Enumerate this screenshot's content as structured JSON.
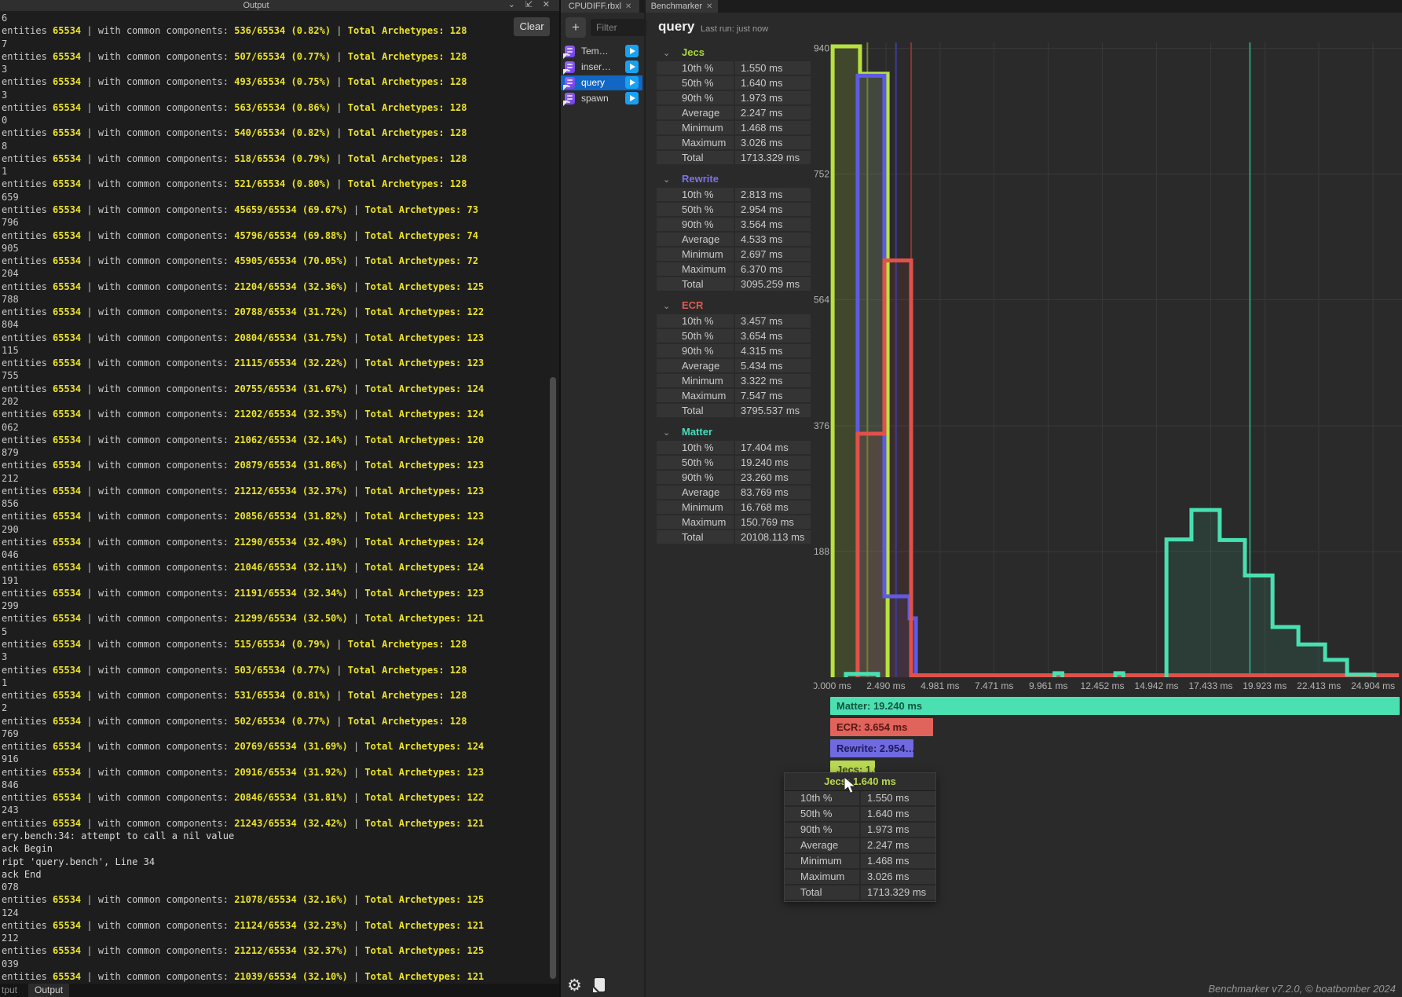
{
  "output_panel": {
    "title": "Output",
    "clear_button": "Clear",
    "bottom_tabs": [
      "tput",
      "Output"
    ],
    "log_prefix": "entities",
    "log_entity_count": "65534",
    "log_mid": "with common components:",
    "log_total_label": "Total Archetypes:",
    "text_color": "#c9c9c9",
    "highlight_color": "#ece32c",
    "lines": [
      {
        "frag": "6",
        "common": "536/65534 (0.82%)",
        "arch": "128"
      },
      {
        "frag": "7",
        "common": "507/65534 (0.77%)",
        "arch": "128"
      },
      {
        "frag": "3",
        "common": "493/65534 (0.75%)",
        "arch": "128"
      },
      {
        "frag": "3",
        "common": "563/65534 (0.86%)",
        "arch": "128"
      },
      {
        "frag": "0",
        "common": "540/65534 (0.82%)",
        "arch": "128"
      },
      {
        "frag": "8",
        "common": "518/65534 (0.79%)",
        "arch": "128"
      },
      {
        "frag": "1",
        "common": "521/65534 (0.80%)",
        "arch": "128"
      },
      {
        "frag": "659",
        "common": "45659/65534 (69.67%)",
        "arch": "73"
      },
      {
        "frag": "796",
        "common": "45796/65534 (69.88%)",
        "arch": "74"
      },
      {
        "frag": "905",
        "common": "45905/65534 (70.05%)",
        "arch": "72"
      },
      {
        "frag": "204",
        "common": "21204/65534 (32.36%)",
        "arch": "125"
      },
      {
        "frag": "788",
        "common": "20788/65534 (31.72%)",
        "arch": "122"
      },
      {
        "frag": "804",
        "common": "20804/65534 (31.75%)",
        "arch": "123"
      },
      {
        "frag": "115",
        "common": "21115/65534 (32.22%)",
        "arch": "123"
      },
      {
        "frag": "755",
        "common": "20755/65534 (31.67%)",
        "arch": "124"
      },
      {
        "frag": "202",
        "common": "21202/65534 (32.35%)",
        "arch": "124"
      },
      {
        "frag": "062",
        "common": "21062/65534 (32.14%)",
        "arch": "120"
      },
      {
        "frag": "879",
        "common": "20879/65534 (31.86%)",
        "arch": "123"
      },
      {
        "frag": "212",
        "common": "21212/65534 (32.37%)",
        "arch": "123"
      },
      {
        "frag": "856",
        "common": "20856/65534 (31.82%)",
        "arch": "123"
      },
      {
        "frag": "290",
        "common": "21290/65534 (32.49%)",
        "arch": "124"
      },
      {
        "frag": "046",
        "common": "21046/65534 (32.11%)",
        "arch": "124"
      },
      {
        "frag": "191",
        "common": "21191/65534 (32.34%)",
        "arch": "123"
      },
      {
        "frag": "299",
        "common": "21299/65534 (32.50%)",
        "arch": "121"
      },
      {
        "frag": "5",
        "common": "515/65534 (0.79%)",
        "arch": "128"
      },
      {
        "frag": "3",
        "common": "503/65534 (0.77%)",
        "arch": "128"
      },
      {
        "frag": "1",
        "common": "531/65534 (0.81%)",
        "arch": "128"
      },
      {
        "frag": "2",
        "common": "502/65534 (0.77%)",
        "arch": "128"
      },
      {
        "frag": "769",
        "common": "20769/65534 (31.69%)",
        "arch": "124"
      },
      {
        "frag": "916",
        "common": "20916/65534 (31.92%)",
        "arch": "123"
      },
      {
        "frag": "846",
        "common": "20846/65534 (31.81%)",
        "arch": "122"
      },
      {
        "frag": "243",
        "common": "21243/65534 (32.42%)",
        "arch": "121"
      },
      {
        "error": "ery.bench:34: attempt to call a nil value"
      },
      {
        "error": "ack Begin"
      },
      {
        "error": "ript 'query.bench', Line 34"
      },
      {
        "error": "ack End"
      },
      {
        "frag": "078",
        "common": "21078/65534 (32.16%)",
        "arch": "125"
      },
      {
        "frag": "124",
        "common": "21124/65534 (32.23%)",
        "arch": "121"
      },
      {
        "frag": "212",
        "common": "21212/65534 (32.37%)",
        "arch": "125"
      },
      {
        "frag": "039",
        "common": "21039/65534 (32.10%)",
        "arch": "121"
      }
    ]
  },
  "tabs": [
    {
      "label": "CPUDIFF.rbxl",
      "close": "✕"
    },
    {
      "label": "Benchmarker",
      "close": "✕"
    }
  ],
  "sidebar": {
    "add_button": "+",
    "filter_placeholder": "Filter",
    "items": [
      {
        "label": "Tem…",
        "selected": false
      },
      {
        "label": "inser…",
        "selected": false
      },
      {
        "label": "query",
        "selected": true
      },
      {
        "label": "spawn",
        "selected": false
      }
    ]
  },
  "header": {
    "title": "query",
    "last_run": "Last run: just now"
  },
  "stats": {
    "row_labels": [
      "10th %",
      "50th %",
      "90th %",
      "Average",
      "Minimum",
      "Maximum",
      "Total"
    ],
    "sections": [
      {
        "name": "Jecs",
        "color": "#a9d938",
        "values": [
          "1.550 ms",
          "1.640 ms",
          "1.973 ms",
          "2.247 ms",
          "1.468 ms",
          "3.026 ms",
          "1713.329 ms"
        ]
      },
      {
        "name": "Rewrite",
        "color": "#7a74e8",
        "values": [
          "2.813 ms",
          "2.954 ms",
          "3.564 ms",
          "4.533 ms",
          "2.697 ms",
          "6.370 ms",
          "3095.259 ms"
        ]
      },
      {
        "name": "ECR",
        "color": "#e05a52",
        "values": [
          "3.457 ms",
          "3.654 ms",
          "4.315 ms",
          "5.434 ms",
          "3.322 ms",
          "7.547 ms",
          "3795.537 ms"
        ]
      },
      {
        "name": "Matter",
        "color": "#46debb",
        "values": [
          "17.404 ms",
          "19.240 ms",
          "23.260 ms",
          "83.769 ms",
          "16.768 ms",
          "150.769 ms",
          "20108.113 ms"
        ]
      }
    ]
  },
  "chart_data": {
    "type": "histogram",
    "x_unit": "ms",
    "grid": true,
    "x_ticks": [
      {
        "v": 0,
        "label": "0.000 ms"
      },
      {
        "v": 2.4904,
        "label": "2.490 ms"
      },
      {
        "v": 4.9808,
        "label": "4.981 ms"
      },
      {
        "v": 7.4712,
        "label": "7.471 ms"
      },
      {
        "v": 9.9616,
        "label": "9.961 ms"
      },
      {
        "v": 12.452,
        "label": "12.452 ms"
      },
      {
        "v": 14.9424,
        "label": "14.942 ms"
      },
      {
        "v": 17.4328,
        "label": "17.433 ms"
      },
      {
        "v": 19.9232,
        "label": "19.923 ms"
      },
      {
        "v": 22.4136,
        "label": "22.413 ms"
      },
      {
        "v": 24.904,
        "label": "24.904 ms"
      }
    ],
    "y_ticks": [
      {
        "v": 188,
        "label": "188"
      },
      {
        "v": 376,
        "label": "376"
      },
      {
        "v": 564,
        "label": "564"
      },
      {
        "v": 752,
        "label": "752"
      },
      {
        "v": 940,
        "label": "940"
      }
    ],
    "ylim": [
      0,
      960
    ],
    "series": [
      {
        "name": "Jecs",
        "color": "#b7e23e",
        "fill_opacity": 0.16,
        "median_ms": 1.64,
        "median_color": "#71802c",
        "segments": [
          [
            [
              0.04,
              943
            ],
            [
              1.3,
              902
            ],
            [
              2.57,
              0
            ]
          ]
        ]
      },
      {
        "name": "Rewrite",
        "color": "#5f5ae3",
        "fill_opacity": 0.1,
        "median_ms": 2.954,
        "median_color": "#3c3c96",
        "segments": [
          [
            [
              1.19,
              899
            ],
            [
              2.42,
              121
            ],
            [
              3.58,
              88
            ],
            [
              3.87,
              0
            ]
          ]
        ]
      },
      {
        "name": "ECR",
        "color": "#e0514a",
        "fill_opacity": 0.1,
        "median_ms": 3.654,
        "median_color": "#8a3531",
        "segments": [
          [
            [
              1.19,
              364
            ],
            [
              2.42,
              623
            ],
            [
              3.65,
              3
            ],
            [
              26.1,
              3
            ]
          ]
        ]
      },
      {
        "name": "Matter",
        "color": "#49e0b1",
        "fill_opacity": 0.1,
        "median_ms": 19.24,
        "median_color": "#2f9a7c",
        "segments": [
          [
            [
              0.65,
              5
            ],
            [
              2.13,
              0
            ]
          ],
          [
            [
              10.25,
              6
            ],
            [
              10.61,
              0
            ]
          ],
          [
            [
              13.05,
              6
            ],
            [
              13.41,
              0
            ]
          ],
          [
            [
              15.4,
              206
            ],
            [
              16.55,
              250
            ],
            [
              17.85,
              205
            ],
            [
              19.01,
              152
            ],
            [
              20.28,
              75
            ],
            [
              21.47,
              49
            ],
            [
              22.7,
              26
            ],
            [
              23.71,
              4
            ],
            [
              24.97,
              0
            ]
          ]
        ]
      }
    ]
  },
  "legend": [
    {
      "name": "Matter",
      "label": "Matter: 19.240 ms",
      "bg": "#4be0b2",
      "fg": "#14543f"
    },
    {
      "name": "ECR",
      "label": "ECR: 3.654 ms",
      "bg": "#e0635c",
      "fg": "#571713"
    },
    {
      "name": "Rewrite",
      "label": "Rewrite: 2.954…",
      "bg": "#6f6ae0",
      "fg": "#1d1a5e"
    },
    {
      "name": "Jecs",
      "label": "Jecs: 1.640 ms",
      "bg": "#b9d952",
      "fg": "#3c4a11"
    }
  ],
  "tooltip": {
    "title": "Jecs: 1.640 ms",
    "rows": [
      [
        "10th %",
        "1.550 ms"
      ],
      [
        "50th %",
        "1.640 ms"
      ],
      [
        "90th %",
        "1.973 ms"
      ],
      [
        "Average",
        "2.247 ms"
      ],
      [
        "Minimum",
        "1.468 ms"
      ],
      [
        "Maximum",
        "3.026 ms"
      ],
      [
        "Total",
        "1713.329 ms"
      ]
    ]
  },
  "footer": {
    "credit": "Benchmarker v7.2.0, © boatbomber 2024"
  },
  "icons": {
    "chevron_down": "⌄",
    "dock": "⇲",
    "close": "✕",
    "gear": "⚙"
  }
}
